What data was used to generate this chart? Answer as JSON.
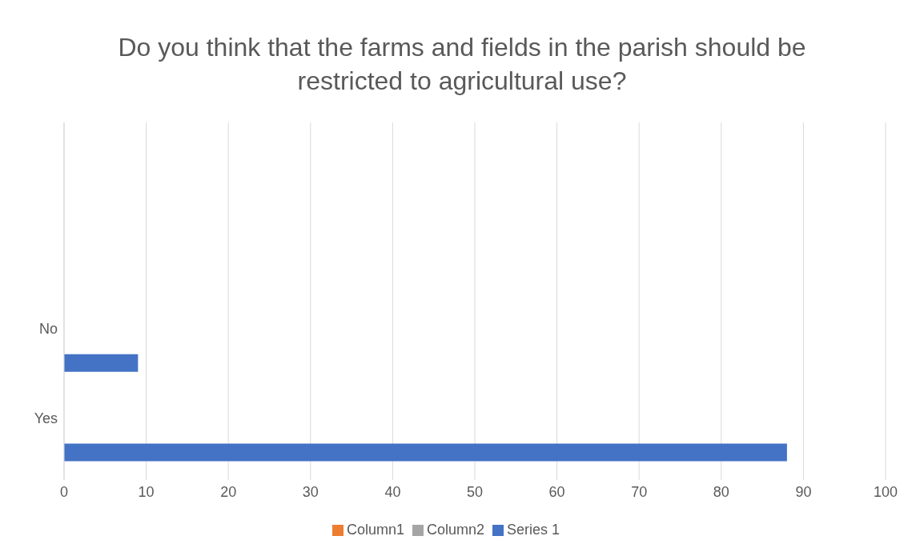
{
  "chart_data": {
    "type": "bar",
    "orientation": "horizontal",
    "title": "Do you think that the farms and fields in the parish should be restricted to agricultural use?",
    "categories": [
      null,
      null,
      "No",
      "Yes"
    ],
    "series": [
      {
        "name": "Column2",
        "color": "#a5a5a5",
        "values": [
          null,
          null,
          null,
          null
        ]
      },
      {
        "name": "Column1",
        "color": "#ed7d31",
        "values": [
          null,
          null,
          null,
          null
        ]
      },
      {
        "name": "Series 1",
        "color": "#4472c4",
        "values": [
          null,
          null,
          9,
          88
        ]
      }
    ],
    "xlim": [
      0,
      100
    ],
    "xticks": [
      0,
      10,
      20,
      30,
      40,
      50,
      60,
      70,
      80,
      90,
      100
    ],
    "grid": "x",
    "legend": "bottom"
  }
}
